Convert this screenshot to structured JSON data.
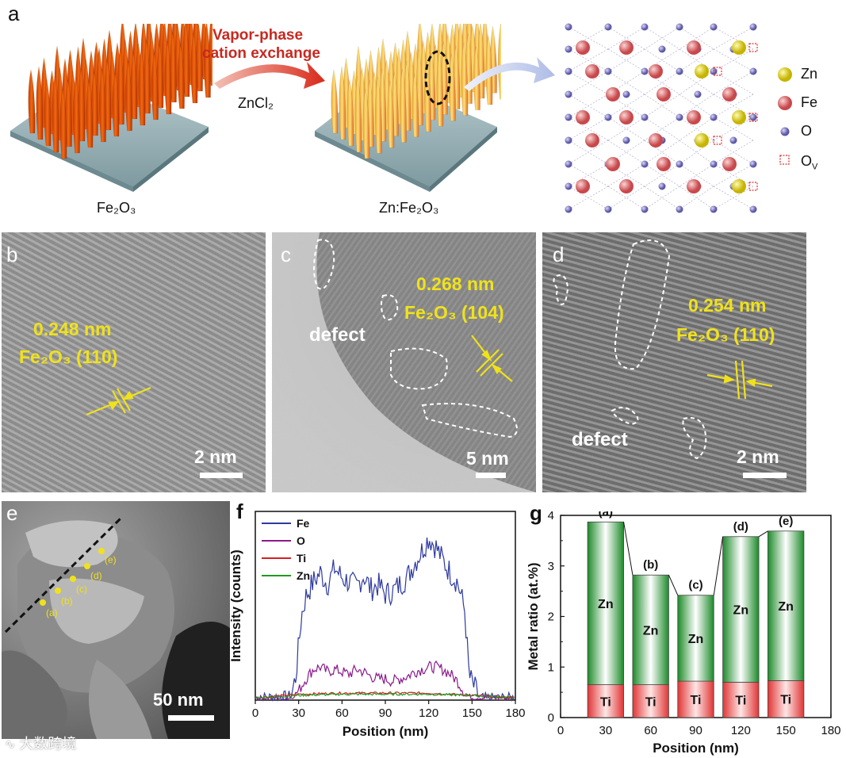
{
  "panel_a": {
    "label": "a",
    "fe2o3_label": "Fe₂O₃",
    "znfe2o3_label": "Zn:Fe₂O₃",
    "arrow_title_line1": "Vapor-phase",
    "arrow_title_line2": "cation exchange",
    "reagent": "ZnCl₂",
    "legend": [
      {
        "symbol": "Zn",
        "color": "#e8e000"
      },
      {
        "symbol": "Fe",
        "color": "#e07a7a"
      },
      {
        "symbol": "O",
        "color": "#8a86cc"
      },
      {
        "symbol": "O",
        "sub": "V",
        "color": "#e03030"
      }
    ]
  },
  "panel_b": {
    "label": "b",
    "spacing": "0.248 nm",
    "plane": "Fe₂O₃ (110)",
    "scale": "2 nm"
  },
  "panel_c": {
    "label": "c",
    "spacing": "0.268 nm",
    "plane": "Fe₂O₃ (104)",
    "defect": "defect",
    "scale": "5 nm"
  },
  "panel_d": {
    "label": "d",
    "spacing": "0.254 nm",
    "plane": "Fe₂O₃ (110)",
    "defect": "defect",
    "scale": "2 nm"
  },
  "panel_e": {
    "label": "e",
    "points": [
      "(a)",
      "(b)",
      "(c)",
      "(d)",
      "(e)"
    ],
    "scale": "50 nm"
  },
  "panel_f": {
    "label": "f"
  },
  "panel_g": {
    "label": "g"
  },
  "watermark": "大数跨境",
  "chart_data": [
    {
      "type": "line",
      "panel": "f",
      "xlabel": "Position (nm)",
      "ylabel": "Intensity (counts)",
      "xlim": [
        0,
        180
      ],
      "xticks": [
        0,
        30,
        60,
        90,
        120,
        150,
        180
      ],
      "series": [
        {
          "name": "Fe",
          "color": "#2e3aa0",
          "x": [
            0,
            25,
            28,
            32,
            35,
            40,
            45,
            50,
            55,
            60,
            65,
            70,
            75,
            80,
            85,
            90,
            95,
            100,
            105,
            110,
            115,
            120,
            125,
            130,
            135,
            140,
            145,
            148,
            155,
            180
          ],
          "values": [
            0.1,
            0.2,
            1.0,
            3.6,
            4.4,
            5.0,
            5.4,
            4.9,
            5.6,
            5.2,
            5.0,
            4.8,
            5.3,
            4.7,
            4.9,
            4.5,
            4.6,
            4.9,
            5.2,
            5.8,
            6.3,
            6.9,
            6.5,
            5.9,
            5.4,
            5.0,
            3.8,
            1.0,
            0.1,
            0.1
          ]
        },
        {
          "name": "O",
          "color": "#8b1a8b",
          "x": [
            0,
            25,
            30,
            35,
            40,
            45,
            50,
            55,
            60,
            65,
            70,
            75,
            80,
            85,
            90,
            95,
            100,
            105,
            110,
            115,
            120,
            125,
            130,
            135,
            140,
            145,
            150,
            180
          ],
          "values": [
            0.1,
            0.1,
            0.4,
            0.9,
            1.3,
            1.4,
            1.2,
            1.3,
            1.2,
            1.1,
            1.3,
            1.2,
            1.0,
            0.9,
            0.9,
            0.8,
            0.9,
            1.0,
            1.2,
            1.3,
            1.4,
            1.4,
            1.3,
            1.1,
            0.8,
            0.3,
            0.1,
            0.1
          ]
        },
        {
          "name": "Ti",
          "color": "#d42020",
          "x": [
            0,
            30,
            60,
            90,
            120,
            150,
            180
          ],
          "values": [
            0.1,
            0.25,
            0.3,
            0.3,
            0.3,
            0.2,
            0.1
          ]
        },
        {
          "name": "Zn",
          "color": "#1e9a1e",
          "x": [
            0,
            30,
            60,
            90,
            120,
            150,
            180
          ],
          "values": [
            0.1,
            0.2,
            0.25,
            0.25,
            0.25,
            0.2,
            0.1
          ]
        }
      ]
    },
    {
      "type": "bar",
      "panel": "g",
      "xlabel": "Position (nm)",
      "ylabel": "Metal ratio (at.%)",
      "xlim": [
        0,
        180
      ],
      "ylim": [
        0,
        4
      ],
      "xticks": [
        0,
        30,
        60,
        90,
        120,
        150,
        180
      ],
      "yticks": [
        0,
        1,
        2,
        3,
        4
      ],
      "categories": [
        "(a)",
        "(b)",
        "(c)",
        "(d)",
        "(e)"
      ],
      "x": [
        30,
        60,
        90,
        120,
        150
      ],
      "series": [
        {
          "name": "Ti",
          "color": "#e84545",
          "values": [
            0.65,
            0.65,
            0.72,
            0.7,
            0.73
          ]
        },
        {
          "name": "Zn",
          "color": "#2e9a2e",
          "values": [
            3.22,
            2.17,
            1.7,
            2.88,
            2.96
          ]
        }
      ],
      "totals": [
        3.87,
        2.82,
        2.42,
        3.58,
        3.69
      ]
    }
  ]
}
